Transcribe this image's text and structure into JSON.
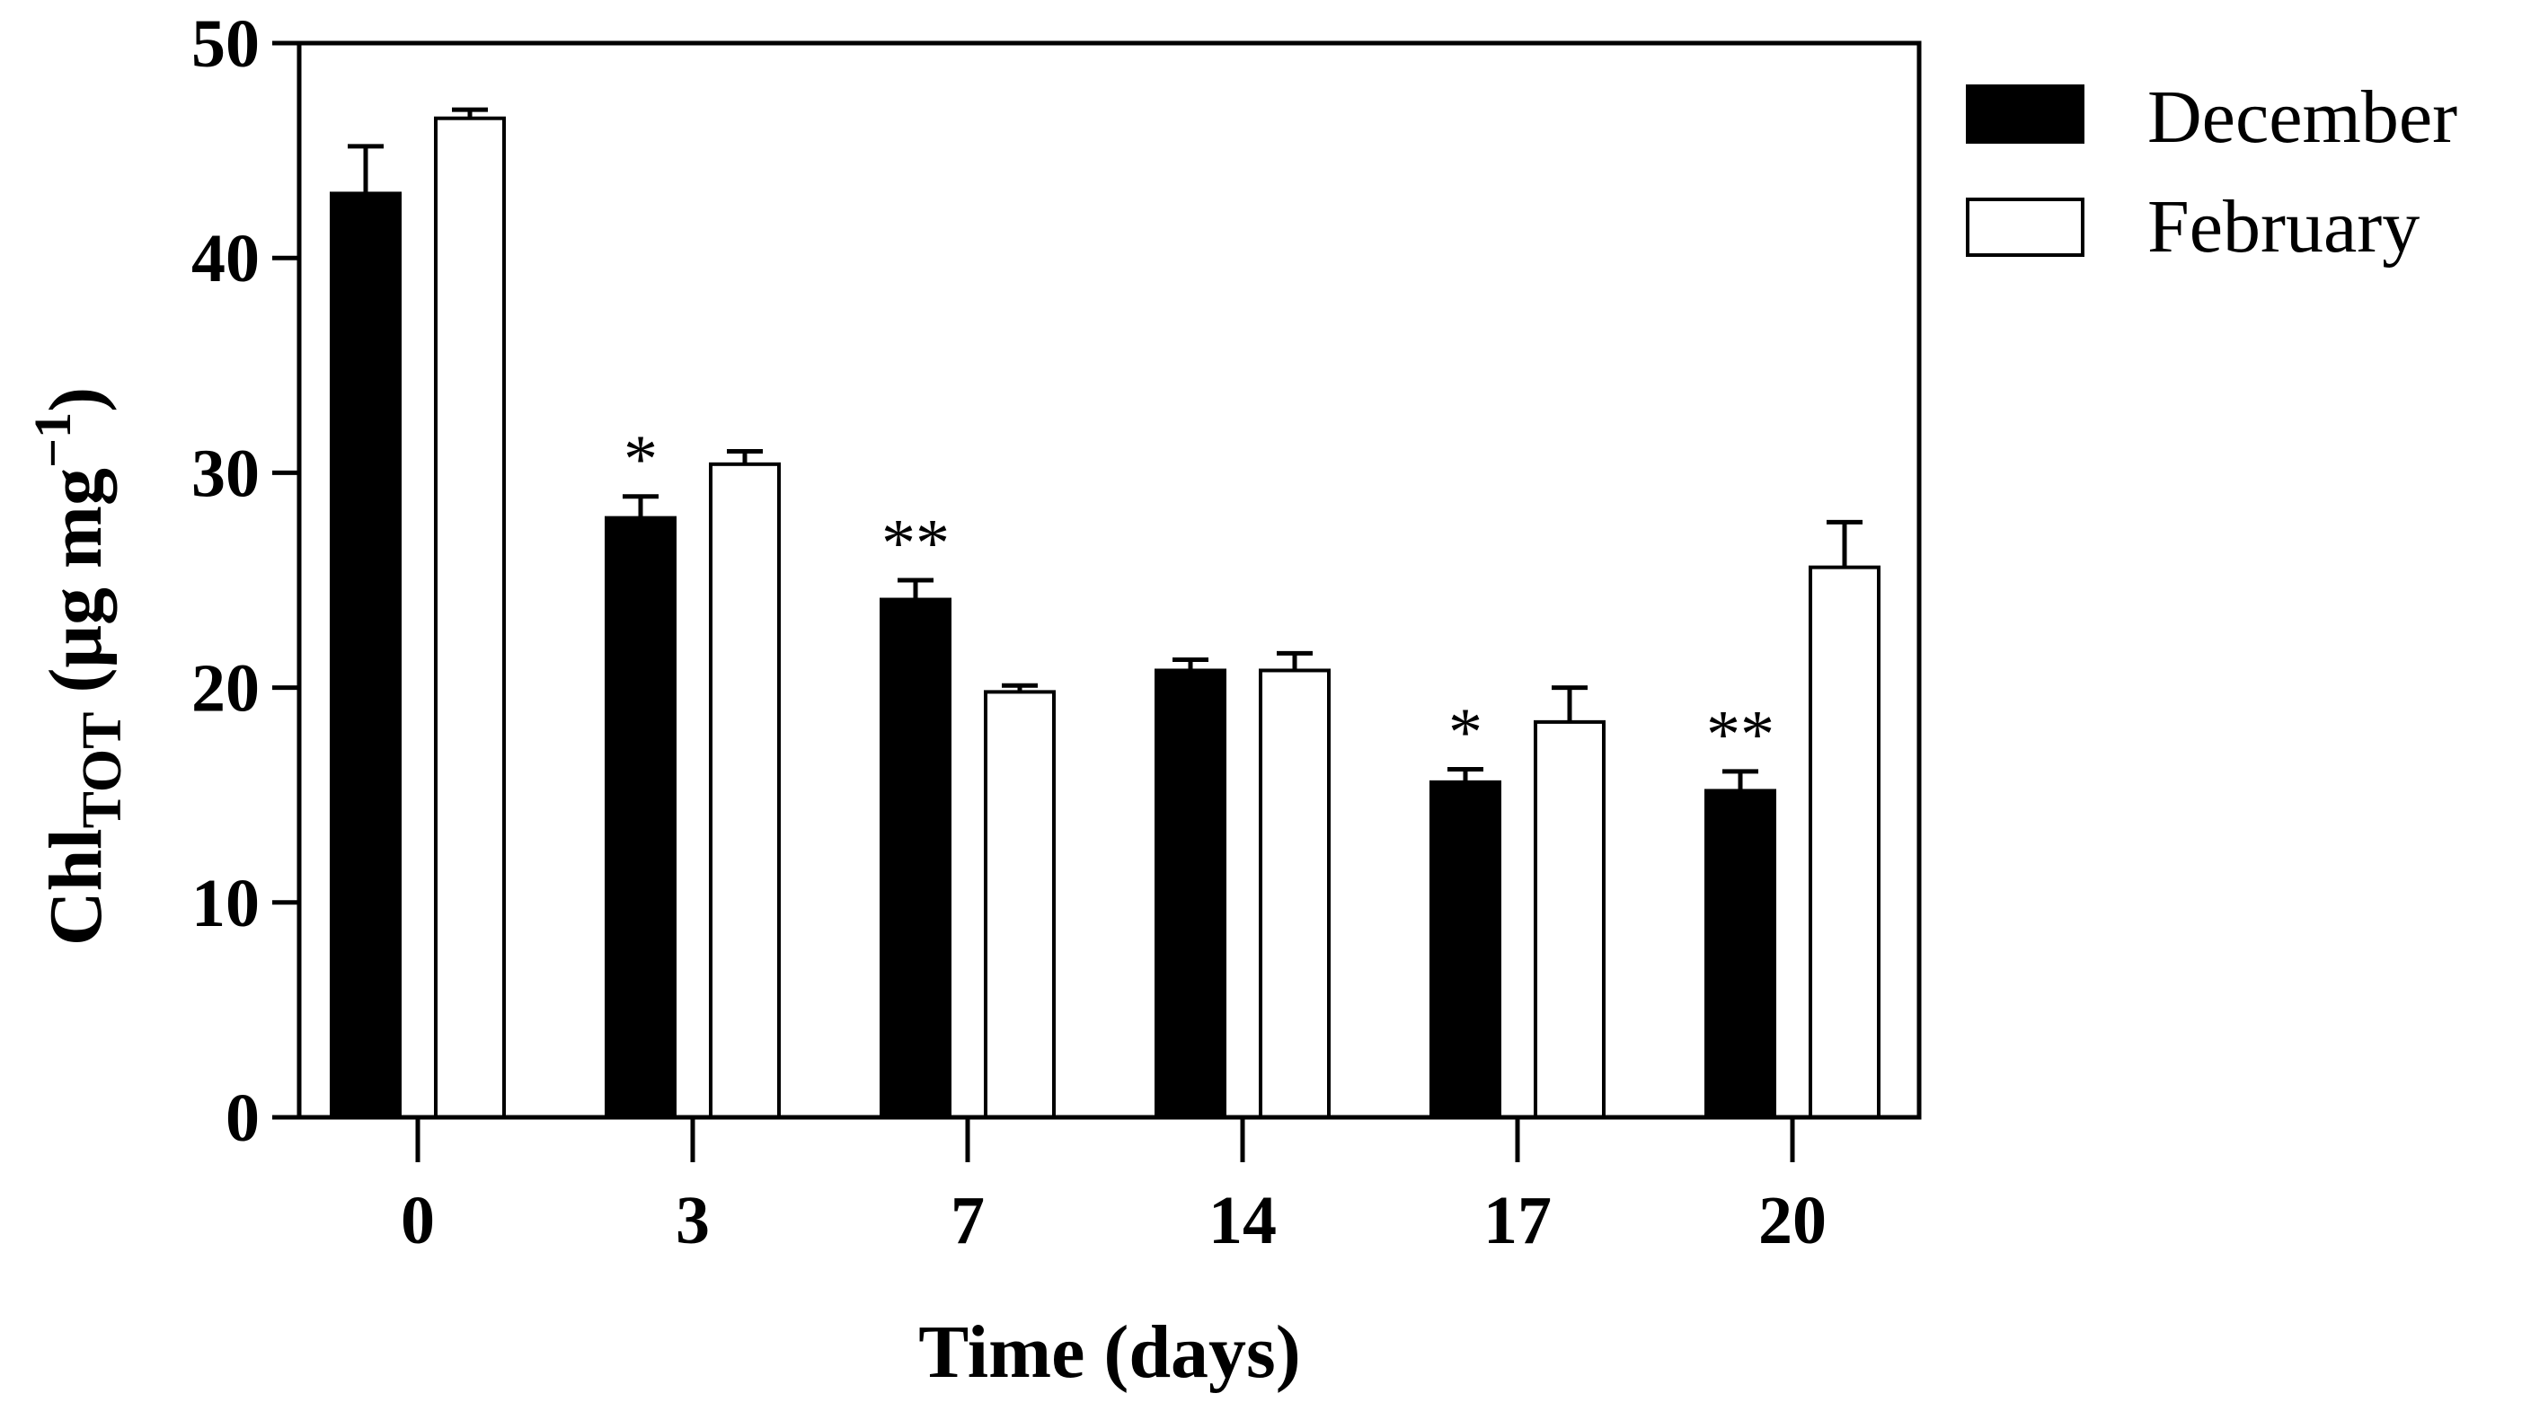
{
  "chart_data": {
    "type": "bar",
    "title": "",
    "xlabel": "Time (days)",
    "ylabel": {
      "prefix": "Chl",
      "subscript": "TOT",
      "units_open": " (μg mg",
      "units_exp": "−1",
      "units_close": ")"
    },
    "categories": [
      "0",
      "3",
      "7",
      "14",
      "17",
      "20"
    ],
    "ylim": [
      0,
      50
    ],
    "yticks": [
      0,
      10,
      20,
      30,
      40,
      50
    ],
    "legend_position": "top-right (outside plot)",
    "series": [
      {
        "name": "December",
        "fill": "#000000",
        "values": [
          43.0,
          27.9,
          24.1,
          20.8,
          15.6,
          15.2
        ],
        "errors": [
          2.2,
          1.0,
          0.9,
          0.5,
          0.6,
          0.9
        ]
      },
      {
        "name": "February",
        "fill": "#ffffff",
        "values": [
          46.5,
          30.4,
          19.8,
          20.8,
          18.4,
          25.6
        ],
        "errors": [
          0.4,
          0.6,
          0.3,
          0.8,
          1.6,
          2.1
        ]
      }
    ],
    "annotations": [
      {
        "category": "3",
        "series": "December",
        "text": "*"
      },
      {
        "category": "7",
        "series": "December",
        "text": "**"
      },
      {
        "category": "17",
        "series": "December",
        "text": "*"
      },
      {
        "category": "20",
        "series": "December",
        "text": "**"
      }
    ]
  }
}
